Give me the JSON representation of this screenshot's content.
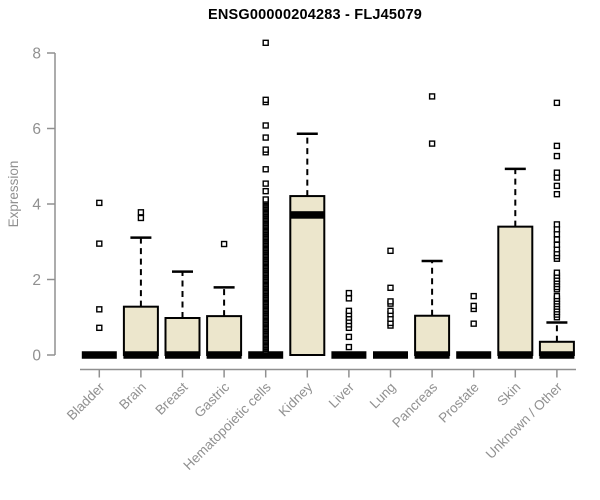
{
  "colors": {
    "box_fill": "#ECE6CC",
    "box_stroke": "#000000",
    "median": "#000000",
    "outlier_stroke": "#000000",
    "outlier_fill": "#FFFFFF",
    "axis": "#909090",
    "title": "#000000",
    "background": "#FFFFFF"
  },
  "chart_data": {
    "type": "boxplot",
    "title": "ENSG00000204283 - FLJ45079",
    "xlabel": "",
    "ylabel": "Expression",
    "ylim": [
      0,
      8
    ],
    "yticks": [
      0,
      2,
      4,
      6,
      8
    ],
    "grid": false,
    "legend": false,
    "x_tick_rotation": 45,
    "categories": [
      "Bladder",
      "Brain",
      "Breast",
      "Gastric",
      "Hematopoietic cells",
      "Kidney",
      "Liver",
      "Lung",
      "Pancreas",
      "Prostate",
      "Skin",
      "Unknown / Other"
    ],
    "boxes": [
      {
        "category": "Bladder",
        "q1": 0,
        "median": 0,
        "q3": 0,
        "whisker_low": 0,
        "whisker_high": 0,
        "outliers": [
          0.72,
          1.21,
          2.95,
          4.03
        ]
      },
      {
        "category": "Brain",
        "q1": 0,
        "median": 0,
        "q3": 1.28,
        "whisker_low": 0,
        "whisker_high": 3.11,
        "outliers": [
          3.63,
          3.78
        ]
      },
      {
        "category": "Breast",
        "q1": 0,
        "median": 0,
        "q3": 0.98,
        "whisker_low": 0,
        "whisker_high": 2.21,
        "outliers": []
      },
      {
        "category": "Gastric",
        "q1": 0,
        "median": 0,
        "q3": 1.03,
        "whisker_low": 0,
        "whisker_high": 1.79,
        "outliers": [
          2.94
        ]
      },
      {
        "category": "Hematopoietic cells",
        "q1": 0,
        "median": 0,
        "q3": 0,
        "whisker_low": 0,
        "whisker_high": 0,
        "outliers": [
          4.34,
          4.54,
          4.92,
          5.37,
          5.44,
          5.76,
          6.08,
          6.7,
          6.76,
          8.27
        ],
        "outlier_band": {
          "min": 0.12,
          "max": 4.12,
          "count": 110
        }
      },
      {
        "category": "Kidney",
        "q1": 0,
        "median": 3.71,
        "q3": 4.21,
        "whisker_low": 0,
        "whisker_high": 5.86,
        "outliers": []
      },
      {
        "category": "Liver",
        "q1": 0,
        "median": 0,
        "q3": 0,
        "whisker_low": 0,
        "whisker_high": 0,
        "outliers": [
          0.21,
          0.48,
          0.72,
          0.81,
          0.9,
          0.99,
          1.08,
          1.17,
          1.5,
          1.64
        ]
      },
      {
        "category": "Lung",
        "q1": 0,
        "median": 0,
        "q3": 0,
        "whisker_low": 0,
        "whisker_high": 0,
        "outliers": [
          0.78,
          0.85,
          0.96,
          1.08,
          1.17,
          1.36,
          1.42,
          1.78,
          2.76
        ]
      },
      {
        "category": "Pancreas",
        "q1": 0,
        "median": 0,
        "q3": 1.04,
        "whisker_low": 0,
        "whisker_high": 2.49,
        "outliers": [
          5.6,
          6.85
        ]
      },
      {
        "category": "Prostate",
        "q1": 0,
        "median": 0,
        "q3": 0,
        "whisker_low": 0,
        "whisker_high": 0,
        "outliers": [
          0.83,
          1.22,
          1.3,
          1.56
        ]
      },
      {
        "category": "Skin",
        "q1": 0,
        "median": 0,
        "q3": 3.4,
        "whisker_low": 0,
        "whisker_high": 4.93,
        "outliers": []
      },
      {
        "category": "Unknown / Other",
        "q1": 0,
        "median": 0,
        "q3": 0.35,
        "whisker_low": 0,
        "whisker_high": 0.86,
        "outliers": [
          1.0,
          1.07,
          1.14,
          1.21,
          1.28,
          1.35,
          1.42,
          1.49,
          1.56,
          1.74,
          1.8,
          1.88,
          1.95,
          2.02,
          2.1,
          2.18,
          2.55,
          2.62,
          2.7,
          2.8,
          2.92,
          3.06,
          3.2,
          3.33,
          3.46,
          4.26,
          4.48,
          4.7,
          4.83,
          5.27,
          5.54,
          6.68
        ]
      }
    ]
  }
}
